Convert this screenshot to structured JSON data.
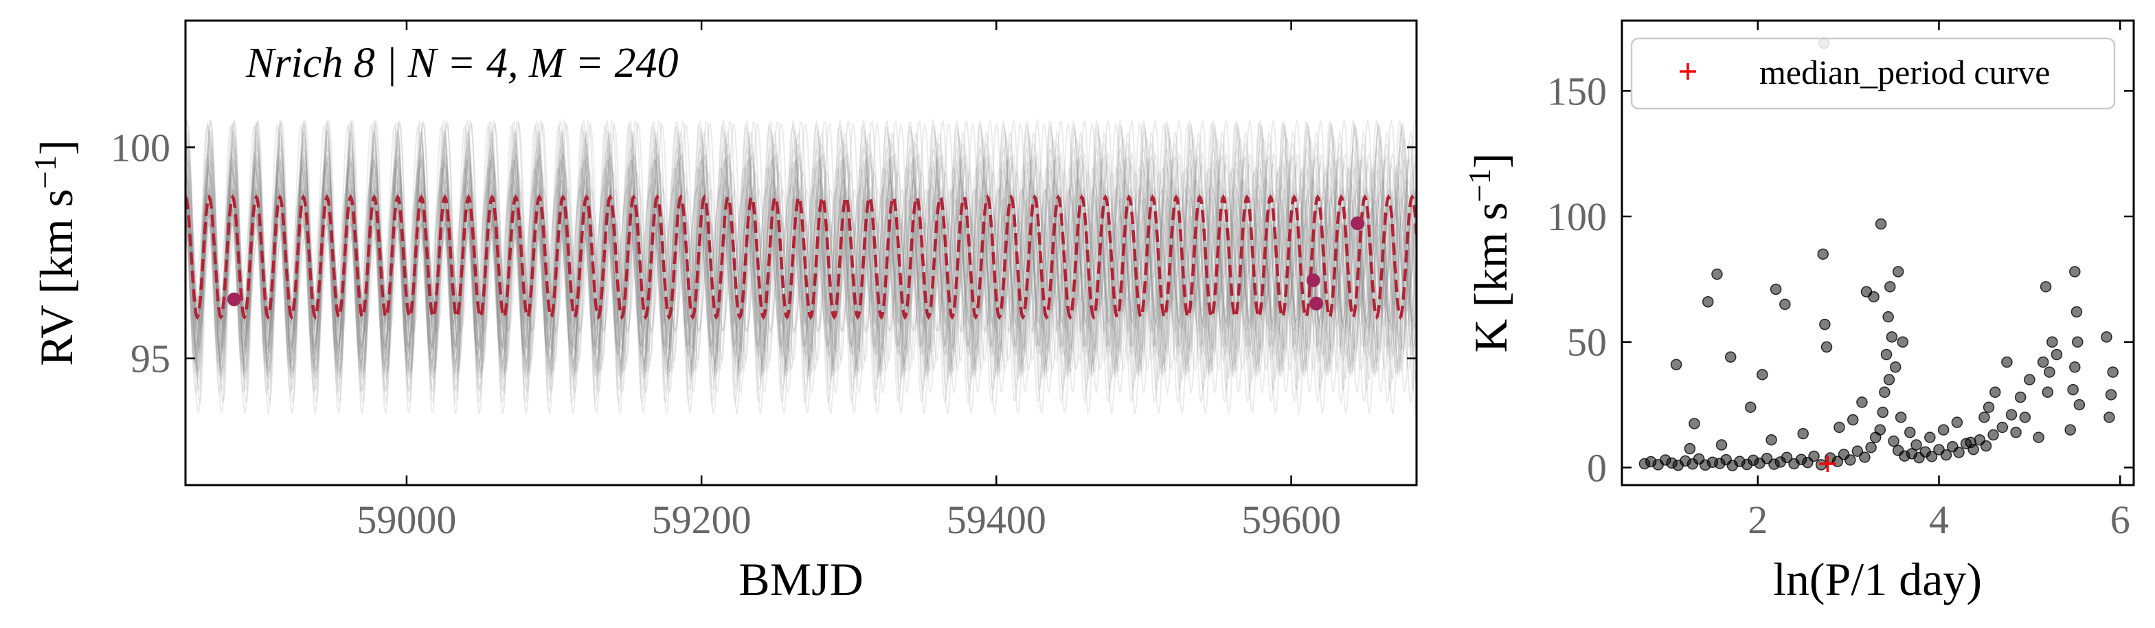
{
  "chart_data": [
    {
      "type": "line",
      "title": "Nrich 8 | N = 4, M = 240",
      "xlabel": "BMJD",
      "ylabel": "RV [km s",
      "ylabel_sup": "−1",
      "ylabel_close": "]",
      "xlim": [
        58850,
        59685
      ],
      "ylim": [
        92,
        103
      ],
      "xticks": [
        59000,
        59200,
        59400,
        59600
      ],
      "yticks": [
        95,
        100
      ],
      "grid": false,
      "colors": {
        "samples": "#808080",
        "median_curve": "#b22234",
        "data_points": "#a0255a"
      },
      "median_curve": {
        "name": "median_period curve",
        "period_days": 16.0,
        "phase_ref": 58882,
        "mean": 97.4,
        "amplitude": 1.42
      },
      "series": [
        {
          "name": "data",
          "points": [
            {
              "x": 58883,
              "y": 96.4
            },
            {
              "x": 59615,
              "y": 96.85
            },
            {
              "x": 59617,
              "y": 96.3
            },
            {
              "x": 59645,
              "y": 98.2
            }
          ]
        }
      ]
    },
    {
      "type": "scatter",
      "xlabel": "ln(P/1 day)",
      "ylabel": "K [km s",
      "ylabel_sup": "−1",
      "ylabel_close": "]",
      "xlim": [
        0.5,
        6.15
      ],
      "ylim": [
        -7,
        178
      ],
      "xticks": [
        2,
        4,
        6
      ],
      "yticks": [
        0,
        50,
        100,
        150
      ],
      "grid": false,
      "legend": {
        "position": "top-right",
        "label": "median_period curve"
      },
      "colors": {
        "points": "#000000",
        "marker": "#ff0000"
      },
      "marker": {
        "x": 2.77,
        "y": 1.5
      },
      "points": [
        {
          "x": 0.75,
          "y": 1.5
        },
        {
          "x": 0.82,
          "y": 2.3
        },
        {
          "x": 0.9,
          "y": 1.1
        },
        {
          "x": 0.98,
          "y": 3.0
        },
        {
          "x": 1.05,
          "y": 1.8
        },
        {
          "x": 1.12,
          "y": 0.9
        },
        {
          "x": 1.2,
          "y": 2.6
        },
        {
          "x": 1.28,
          "y": 1.4
        },
        {
          "x": 1.35,
          "y": 3.4
        },
        {
          "x": 1.42,
          "y": 1.0
        },
        {
          "x": 1.5,
          "y": 2.1
        },
        {
          "x": 1.58,
          "y": 1.6
        },
        {
          "x": 1.65,
          "y": 3.1
        },
        {
          "x": 1.72,
          "y": 0.8
        },
        {
          "x": 1.8,
          "y": 2.4
        },
        {
          "x": 1.88,
          "y": 1.2
        },
        {
          "x": 1.95,
          "y": 2.9
        },
        {
          "x": 2.02,
          "y": 1.7
        },
        {
          "x": 2.1,
          "y": 3.6
        },
        {
          "x": 2.18,
          "y": 1.3
        },
        {
          "x": 2.25,
          "y": 2.2
        },
        {
          "x": 2.32,
          "y": 4.0
        },
        {
          "x": 2.4,
          "y": 1.5
        },
        {
          "x": 2.48,
          "y": 3.2
        },
        {
          "x": 2.55,
          "y": 2.0
        },
        {
          "x": 2.62,
          "y": 4.5
        },
        {
          "x": 2.7,
          "y": 1.1
        },
        {
          "x": 2.8,
          "y": 3.8
        },
        {
          "x": 2.88,
          "y": 2.4
        },
        {
          "x": 2.95,
          "y": 5.2
        },
        {
          "x": 3.02,
          "y": 3.0
        },
        {
          "x": 3.1,
          "y": 6.5
        },
        {
          "x": 3.18,
          "y": 4.1
        },
        {
          "x": 3.25,
          "y": 8.0
        },
        {
          "x": 3.3,
          "y": 12.0
        },
        {
          "x": 3.35,
          "y": 15.0
        },
        {
          "x": 3.38,
          "y": 22.0
        },
        {
          "x": 3.4,
          "y": 30.0
        },
        {
          "x": 3.42,
          "y": 45.0
        },
        {
          "x": 3.44,
          "y": 60.0
        },
        {
          "x": 3.46,
          "y": 72.0
        },
        {
          "x": 3.5,
          "y": 10.5
        },
        {
          "x": 3.55,
          "y": 6.8
        },
        {
          "x": 3.62,
          "y": 4.6
        },
        {
          "x": 3.7,
          "y": 5.5
        },
        {
          "x": 3.78,
          "y": 3.9
        },
        {
          "x": 3.85,
          "y": 6.2
        },
        {
          "x": 3.92,
          "y": 4.4
        },
        {
          "x": 4.0,
          "y": 7.1
        },
        {
          "x": 4.08,
          "y": 5.0
        },
        {
          "x": 4.15,
          "y": 8.3
        },
        {
          "x": 4.22,
          "y": 6.0
        },
        {
          "x": 4.3,
          "y": 9.5
        },
        {
          "x": 4.38,
          "y": 7.2
        },
        {
          "x": 4.45,
          "y": 11.0
        },
        {
          "x": 4.52,
          "y": 8.6
        },
        {
          "x": 4.6,
          "y": 13.0
        },
        {
          "x": 4.7,
          "y": 16.0
        },
        {
          "x": 4.8,
          "y": 21.0
        },
        {
          "x": 4.9,
          "y": 28.0
        },
        {
          "x": 5.0,
          "y": 35.0
        },
        {
          "x": 5.15,
          "y": 42.0
        },
        {
          "x": 5.2,
          "y": 30.0
        },
        {
          "x": 5.25,
          "y": 50.0
        },
        {
          "x": 5.5,
          "y": 40.0
        },
        {
          "x": 5.52,
          "y": 62.0
        },
        {
          "x": 5.55,
          "y": 25.0
        },
        {
          "x": 5.88,
          "y": 20.0
        },
        {
          "x": 5.9,
          "y": 29.0
        },
        {
          "x": 5.85,
          "y": 52.0
        },
        {
          "x": 1.1,
          "y": 41.0
        },
        {
          "x": 1.3,
          "y": 17.5
        },
        {
          "x": 1.45,
          "y": 66.0
        },
        {
          "x": 1.55,
          "y": 77.0
        },
        {
          "x": 1.7,
          "y": 44.0
        },
        {
          "x": 1.92,
          "y": 24.0
        },
        {
          "x": 2.05,
          "y": 37.0
        },
        {
          "x": 2.2,
          "y": 71.0
        },
        {
          "x": 2.3,
          "y": 65.0
        },
        {
          "x": 2.72,
          "y": 85.0
        },
        {
          "x": 2.74,
          "y": 57.0
        },
        {
          "x": 2.76,
          "y": 48.0
        },
        {
          "x": 3.2,
          "y": 70.0
        },
        {
          "x": 3.28,
          "y": 68.0
        },
        {
          "x": 3.36,
          "y": 97.0
        },
        {
          "x": 3.55,
          "y": 78.0
        },
        {
          "x": 3.6,
          "y": 50.0
        },
        {
          "x": 4.5,
          "y": 20.0
        },
        {
          "x": 4.62,
          "y": 30.0
        },
        {
          "x": 4.75,
          "y": 42.0
        },
        {
          "x": 5.18,
          "y": 72.0
        },
        {
          "x": 5.5,
          "y": 78.0
        },
        {
          "x": 2.73,
          "y": 169.0
        },
        {
          "x": 1.25,
          "y": 7.5
        },
        {
          "x": 1.6,
          "y": 9.0
        },
        {
          "x": 2.15,
          "y": 11.0
        },
        {
          "x": 2.5,
          "y": 13.5
        },
        {
          "x": 2.9,
          "y": 16.0
        },
        {
          "x": 3.05,
          "y": 19.0
        },
        {
          "x": 3.15,
          "y": 26.0
        },
        {
          "x": 3.45,
          "y": 35.0
        },
        {
          "x": 3.48,
          "y": 52.0
        },
        {
          "x": 3.52,
          "y": 40.0
        },
        {
          "x": 3.58,
          "y": 20.0
        },
        {
          "x": 3.68,
          "y": 14.0
        },
        {
          "x": 3.75,
          "y": 9.0
        },
        {
          "x": 3.9,
          "y": 12.0
        },
        {
          "x": 4.05,
          "y": 15.0
        },
        {
          "x": 4.2,
          "y": 18.0
        },
        {
          "x": 4.35,
          "y": 10.0
        },
        {
          "x": 4.55,
          "y": 24.0
        },
        {
          "x": 4.85,
          "y": 14.0
        },
        {
          "x": 4.95,
          "y": 20.0
        },
        {
          "x": 5.1,
          "y": 12.0
        },
        {
          "x": 5.22,
          "y": 38.0
        },
        {
          "x": 5.3,
          "y": 45.0
        },
        {
          "x": 5.45,
          "y": 15.0
        },
        {
          "x": 5.48,
          "y": 31.0
        },
        {
          "x": 5.53,
          "y": 50.0
        },
        {
          "x": 5.92,
          "y": 38.0
        }
      ]
    }
  ]
}
